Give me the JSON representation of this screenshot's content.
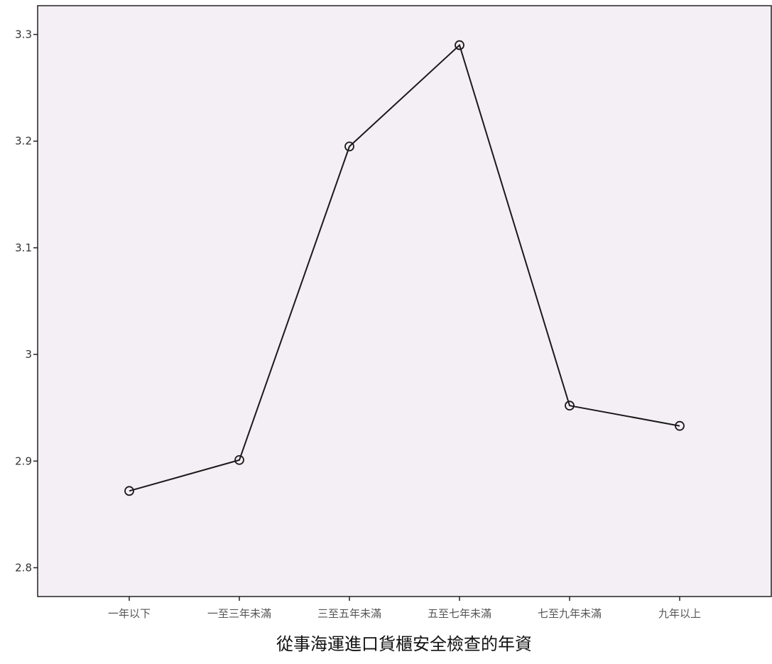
{
  "chart_data": {
    "type": "line",
    "title": "",
    "xlabel": "從事海運進口貨櫃安全檢查的年資",
    "ylabel": "",
    "categories": [
      "一年以下",
      "一至三年未滿",
      "三至五年未滿",
      "五至七年未滿",
      "七至九年未滿",
      "九年以上"
    ],
    "series": [
      {
        "values": [
          2.872,
          2.901,
          3.195,
          3.29,
          2.952,
          2.933
        ]
      }
    ],
    "yticks": [
      2.8,
      2.9,
      3.0,
      3.1,
      3.2,
      3.3
    ],
    "ytick_labels": [
      "2.8",
      "2.9",
      "3",
      "3.1",
      "3.2",
      "3.3"
    ],
    "ylim": [
      2.773,
      3.327
    ],
    "grid": false,
    "legend": "none",
    "markers": "open-circle",
    "colors": {
      "plot_background": "#f4eff4",
      "line": "#1a1a1a",
      "frame": "#222222"
    }
  }
}
